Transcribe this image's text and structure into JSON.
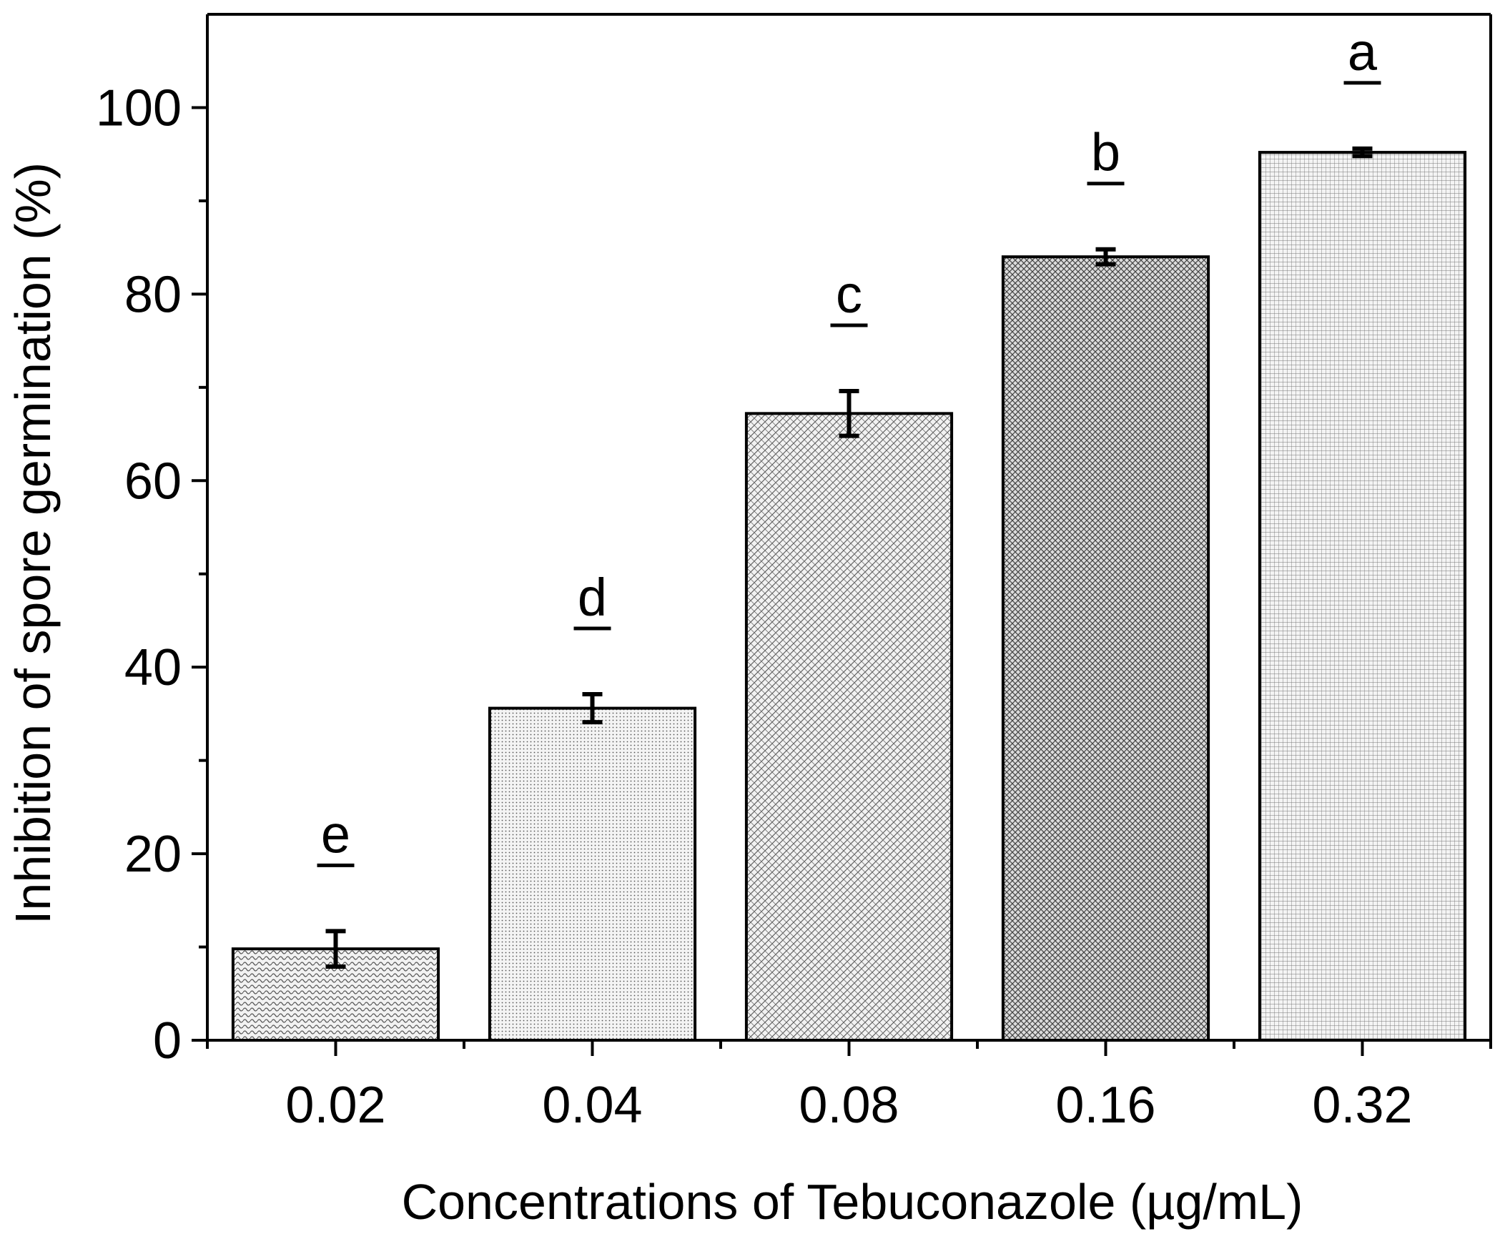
{
  "chart_data": {
    "type": "bar",
    "title": "",
    "xlabel": "Concentrations of Tebuconazole (µg/mL)",
    "ylabel": "Inhibition of spore  germination (%)",
    "categories": [
      "0.02",
      "0.04",
      "0.08",
      "0.16",
      "0.32"
    ],
    "values": [
      9.8,
      35.6,
      67.2,
      84.0,
      95.2
    ],
    "errors": [
      1.9,
      1.5,
      2.4,
      0.8,
      0.4
    ],
    "significance": [
      "e",
      "d",
      "c",
      "b",
      "a"
    ],
    "ylim": [
      0,
      110
    ],
    "yticks": [
      "0",
      "20",
      "40",
      "60",
      "80",
      "100"
    ],
    "grid": false,
    "bar_fill": "#e6e6e6",
    "bar_stroke": "#000000"
  }
}
